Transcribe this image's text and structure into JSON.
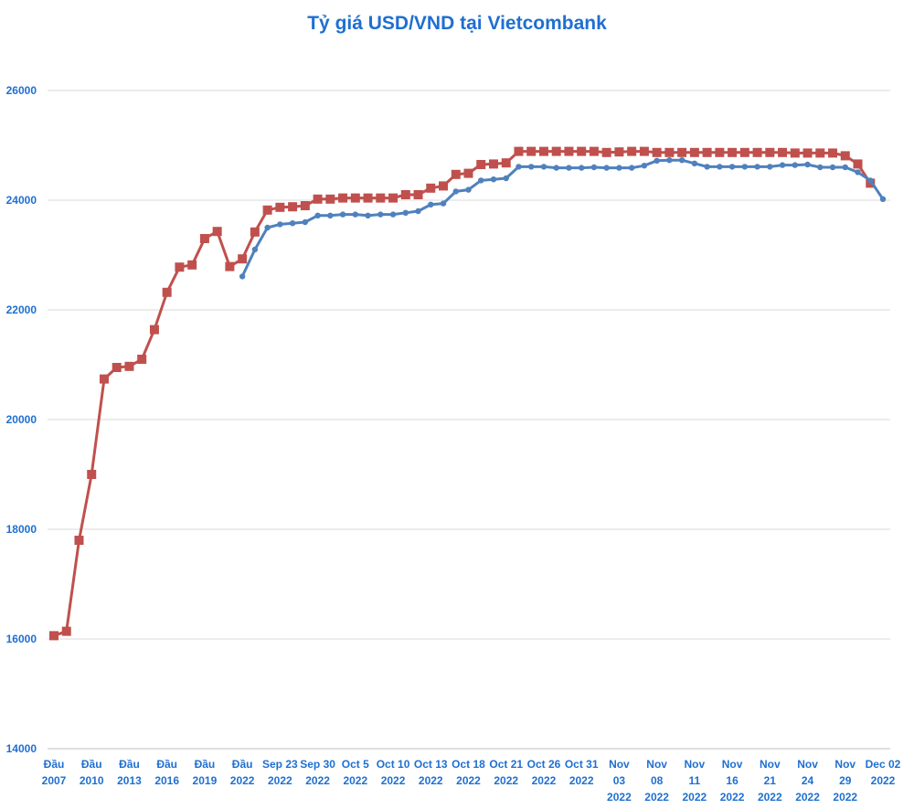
{
  "chart_data": {
    "type": "line",
    "title": "Tỷ giá USD/VND tại Vietcombank",
    "xlabel": "",
    "ylabel": "",
    "ylim": [
      14000,
      26000
    ],
    "yticks": [
      14000,
      16000,
      18000,
      20000,
      22000,
      24000,
      26000
    ],
    "grid": true,
    "x_tick_labels": [
      [
        "Đầu",
        "2007"
      ],
      [
        "Đầu",
        "2010"
      ],
      [
        "Đầu",
        "2013"
      ],
      [
        "Đầu",
        "2016"
      ],
      [
        "Đầu",
        "2019"
      ],
      [
        "Đầu",
        "2022"
      ],
      [
        "Sep 23",
        "2022"
      ],
      [
        "Sep 30",
        "2022"
      ],
      [
        "Oct 5",
        "2022"
      ],
      [
        "Oct 10",
        "2022"
      ],
      [
        "Oct 13",
        "2022"
      ],
      [
        "Oct 18",
        "2022"
      ],
      [
        "Oct 21",
        "2022"
      ],
      [
        "Oct 26",
        "2022"
      ],
      [
        "Oct 31",
        "2022"
      ],
      [
        "Nov",
        "03",
        "2022"
      ],
      [
        "Nov",
        "08",
        "2022"
      ],
      [
        "Nov",
        "11",
        "2022"
      ],
      [
        "Nov",
        "16",
        "2022"
      ],
      [
        "Nov",
        "21",
        "2022"
      ],
      [
        "Nov",
        "24",
        "2022"
      ],
      [
        "Nov",
        "29",
        "2022"
      ],
      [
        "Dec 02",
        "2022"
      ]
    ],
    "series": [
      {
        "color": "#c0504d",
        "marker": "square",
        "start_index": 0,
        "values": [
          16060,
          16140,
          17800,
          19000,
          20740,
          20950,
          20970,
          21100,
          21640,
          22320,
          22780,
          22820,
          23300,
          23430,
          22790,
          22930,
          23420,
          23820,
          23870,
          23880,
          23900,
          24020,
          24020,
          24040,
          24040,
          24040,
          24040,
          24040,
          24100,
          24100,
          24220,
          24260,
          24470,
          24490,
          24650,
          24660,
          24680,
          24890,
          24890,
          24890,
          24890,
          24890,
          24890,
          24890,
          24870,
          24880,
          24890,
          24890,
          24870,
          24870,
          24870,
          24870,
          24870,
          24870,
          24870,
          24870,
          24870,
          24870,
          24870,
          24860,
          24860,
          24860,
          24860,
          24810,
          24660,
          24310
        ]
      },
      {
        "color": "#4f81bd",
        "marker": "circle",
        "start_index": 15,
        "values": [
          22610,
          23100,
          23500,
          23560,
          23580,
          23600,
          23720,
          23720,
          23740,
          23740,
          23720,
          23740,
          23740,
          23770,
          23800,
          23920,
          23940,
          24160,
          24190,
          24360,
          24380,
          24400,
          24610,
          24610,
          24610,
          24590,
          24590,
          24590,
          24600,
          24590,
          24590,
          24590,
          24630,
          24720,
          24730,
          24730,
          24670,
          24610,
          24610,
          24610,
          24610,
          24610,
          24610,
          24640,
          24640,
          24650,
          24600,
          24600,
          24600,
          24510,
          24360,
          24020
        ]
      }
    ]
  }
}
